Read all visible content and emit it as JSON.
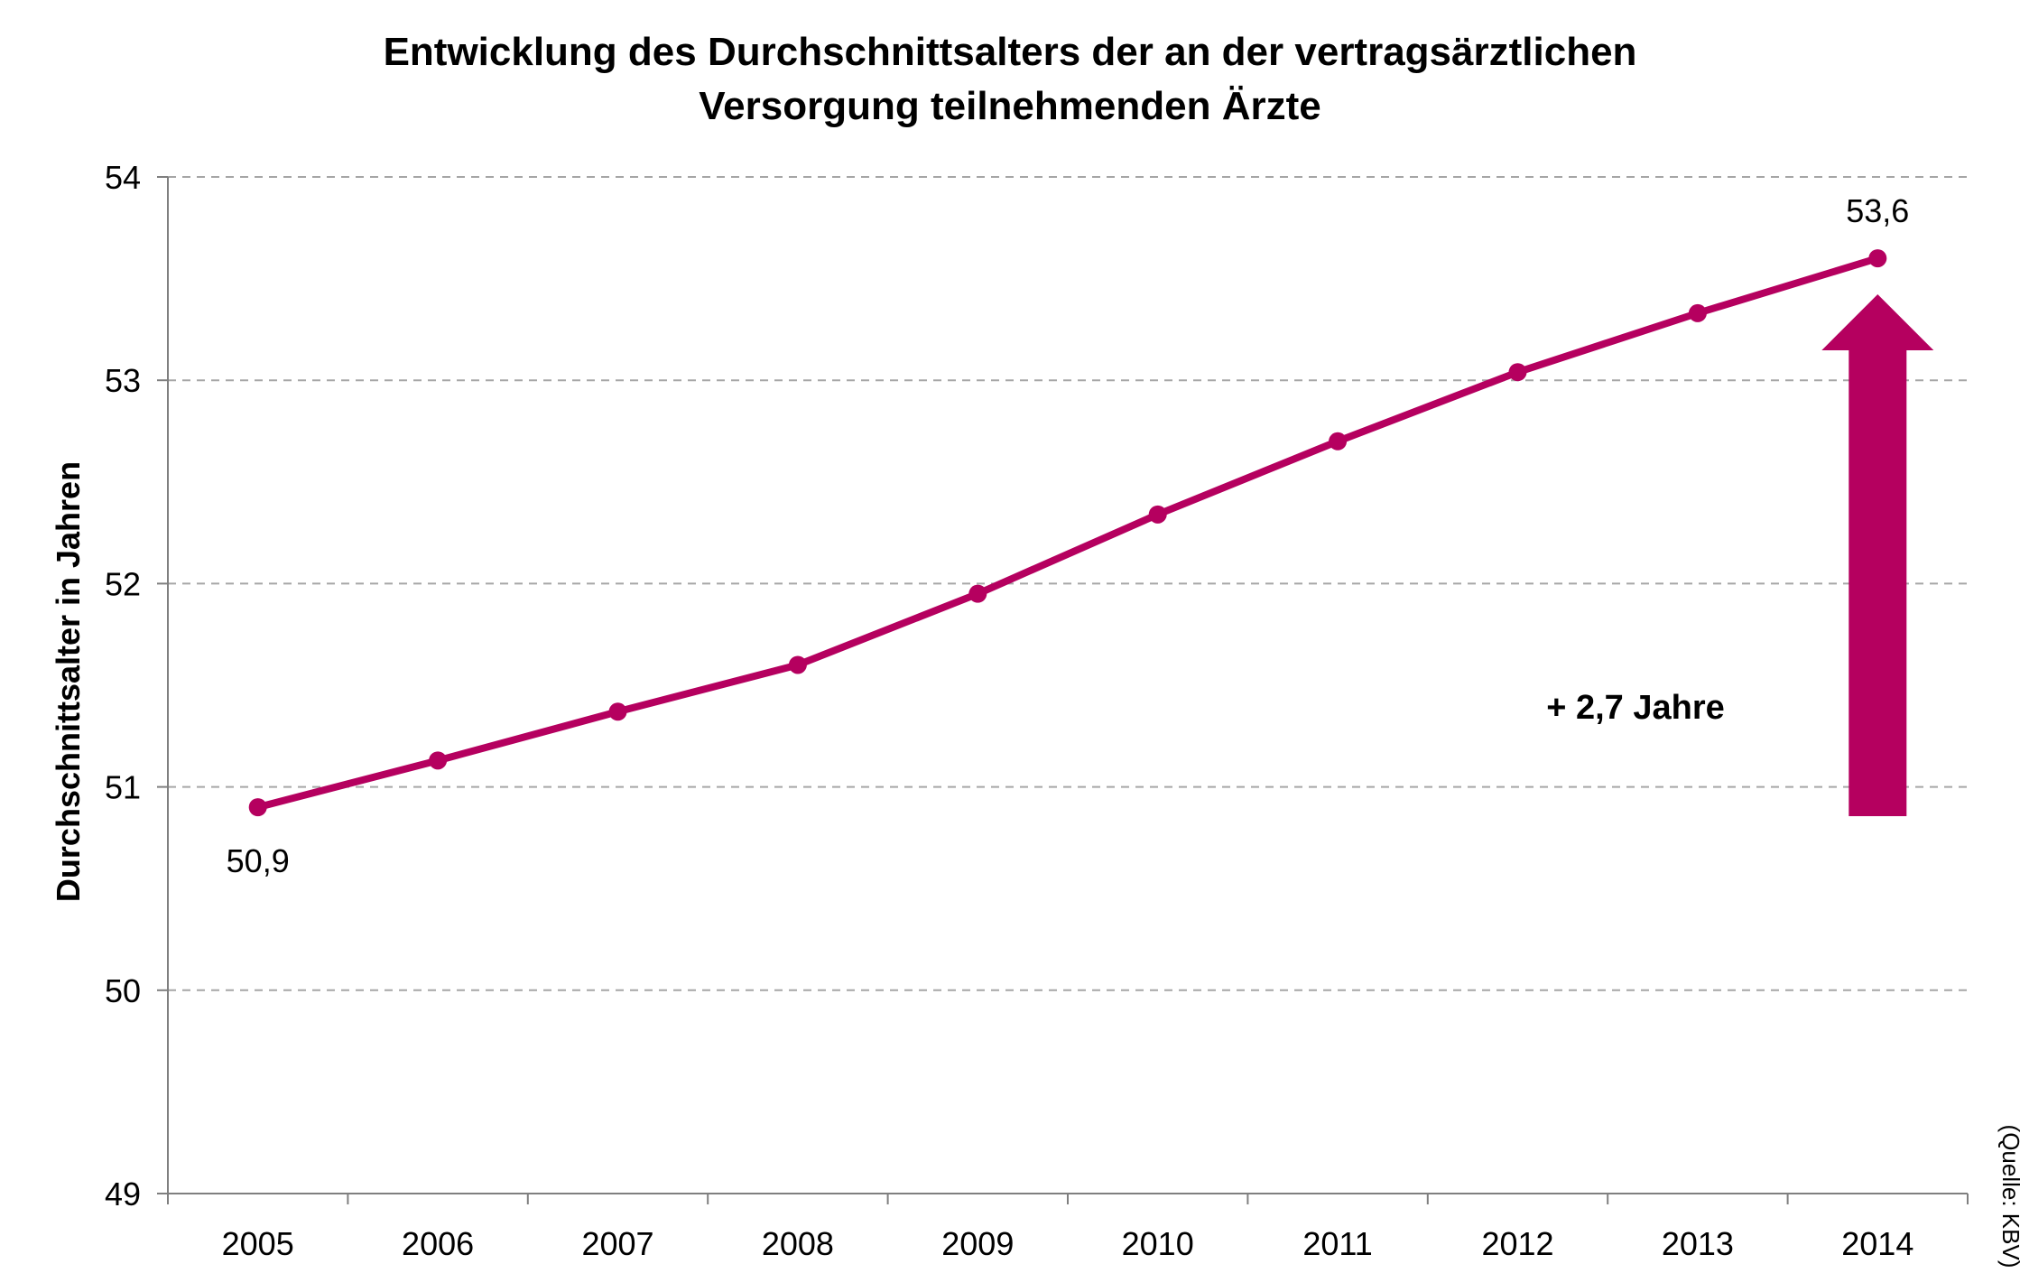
{
  "colors": {
    "series": "#b5005f",
    "grid": "#a6a6a6",
    "axis": "#7f7f7f"
  },
  "chart_data": {
    "type": "line",
    "title_lines": [
      "Entwicklung des Durchschnittsalters der an der vertragsärztlichen",
      "Versorgung teilnehmenden Ärzte"
    ],
    "xlabel": "",
    "ylabel": "Durchschnittsalter in Jahren",
    "ylim": [
      49,
      54
    ],
    "yticks": [
      "49",
      "50",
      "51",
      "52",
      "53",
      "54"
    ],
    "categories": [
      "2005",
      "2006",
      "2007",
      "2008",
      "2009",
      "2010",
      "2011",
      "2012",
      "2013",
      "2014"
    ],
    "series": [
      {
        "values": [
          50.9,
          51.13,
          51.37,
          51.6,
          51.95,
          52.34,
          52.7,
          53.04,
          53.33,
          53.6
        ]
      }
    ],
    "data_labels": [
      {
        "index": 0,
        "text": "50,9",
        "placement": "below"
      },
      {
        "index": 9,
        "text": "53,6",
        "placement": "above"
      }
    ],
    "annotation": {
      "text": "+ 2,7 Jahre",
      "arrow": "up"
    },
    "grid": true,
    "grid_style": "dashed",
    "legend": "none",
    "source": "(Quelle: KBV)"
  }
}
